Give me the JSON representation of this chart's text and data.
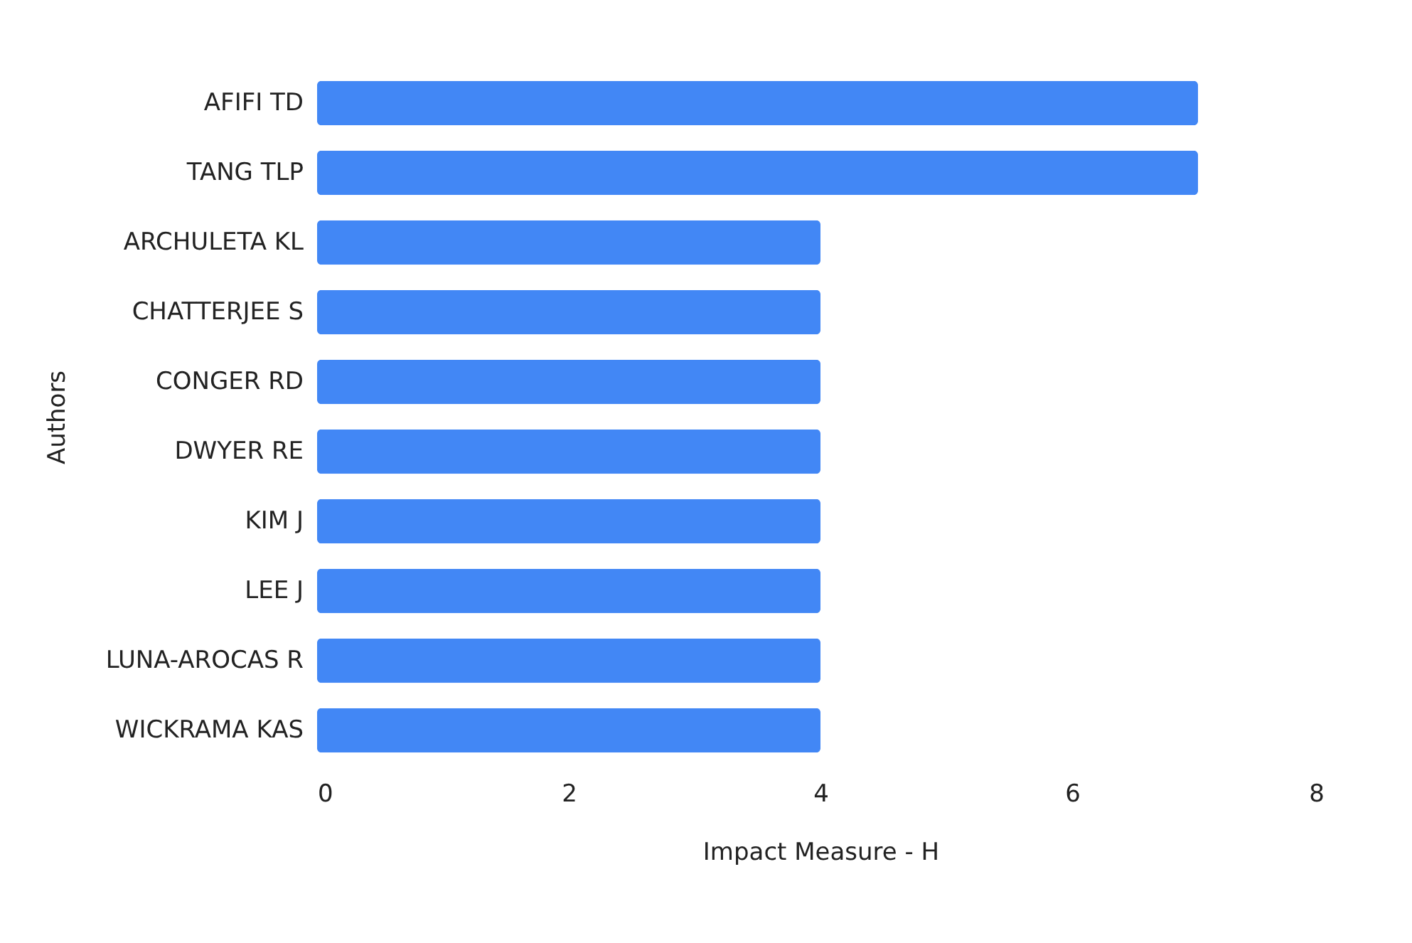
{
  "chart_data": {
    "type": "bar",
    "orientation": "horizontal",
    "xlabel": "Impact Measure - H",
    "ylabel": "Authors",
    "categories": [
      "AFIFI TD",
      "TANG TLP",
      "ARCHULETA KL",
      "CHATTERJEE S",
      "CONGER RD",
      "DWYER RE",
      "KIM J",
      "LEE J",
      "LUNA-AROCAS R",
      "WICKRAMA KAS"
    ],
    "values": [
      7,
      7,
      4,
      4,
      4,
      4,
      4,
      4,
      4,
      4
    ],
    "color": "#4287f5",
    "xlim": [
      0,
      8
    ],
    "xticks": [
      0,
      2,
      4,
      6,
      8
    ],
    "grid": false
  }
}
